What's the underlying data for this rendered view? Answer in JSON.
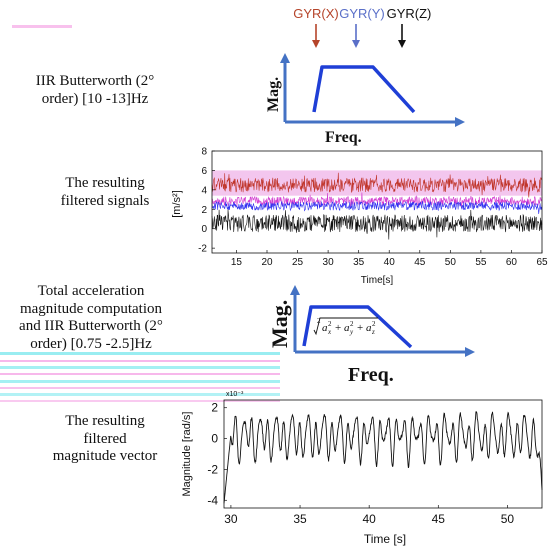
{
  "left_labels": {
    "filter1_line1": "IIR Butterworth (2°",
    "filter1_line2": "order) [10 -13]Hz",
    "result1_line1": "The resulting",
    "result1_line2": "filtered signals",
    "filter2_line1": "Total acceleration",
    "filter2_line2": "magnitude computation",
    "filter2_line3": "and IIR Butterworth (2°",
    "filter2_line4": "order) [0.75 -2.5]Hz",
    "result2_line1": "The resulting",
    "result2_line2": "filtered",
    "result2_line3": "magnitude vector"
  },
  "legend": [
    {
      "label": "GYR(X)",
      "color": "#b5442a"
    },
    {
      "label": "GYR(Y)",
      "color": "#5a6fc8"
    },
    {
      "label": "GYR(Z)",
      "color": "#111111"
    }
  ],
  "filter_diagram_1": {
    "ylabel": "Mag.",
    "xlabel": "Freq."
  },
  "filter_diagram_2": {
    "ylabel": "Mag.",
    "xlabel": "Freq."
  },
  "colors": {
    "axis_arrow": "#4472c4",
    "filter_shape": "#1f3fd6"
  },
  "chart_data": [
    {
      "type": "line",
      "ylabel": "[m/s²]",
      "xlabel": "Time[s]",
      "xlim": [
        11,
        65
      ],
      "ylim": [
        -2.5,
        8
      ],
      "xticks": [
        15,
        20,
        25,
        30,
        35,
        40,
        45,
        50,
        55,
        60,
        65
      ],
      "yticks": [
        -2,
        0,
        2,
        4,
        6,
        8
      ],
      "band_color": "#f3c6ee",
      "series": [
        {
          "mean": 4.5,
          "amp": 0.75,
          "color": "#c0352a"
        },
        {
          "mean": 2.85,
          "amp": 0.45,
          "color": "#d23ad0"
        },
        {
          "mean": 2.35,
          "amp": 0.45,
          "color": "#2f2ff0"
        },
        {
          "mean": 0.55,
          "amp": 0.9,
          "color": "#111111"
        }
      ]
    },
    {
      "type": "line",
      "ylabel": "Magnitude [rad/s]",
      "xlabel": "Time [s]",
      "scale_note": "x10⁻³",
      "xlim": [
        29.5,
        52.5
      ],
      "ylim": [
        -4.5,
        2.5
      ],
      "xticks": [
        30,
        35,
        40,
        45,
        50
      ],
      "yticks": [
        -4,
        -2,
        0,
        2
      ],
      "series": [
        {
          "name": "",
          "color": "#111111"
        }
      ]
    }
  ]
}
